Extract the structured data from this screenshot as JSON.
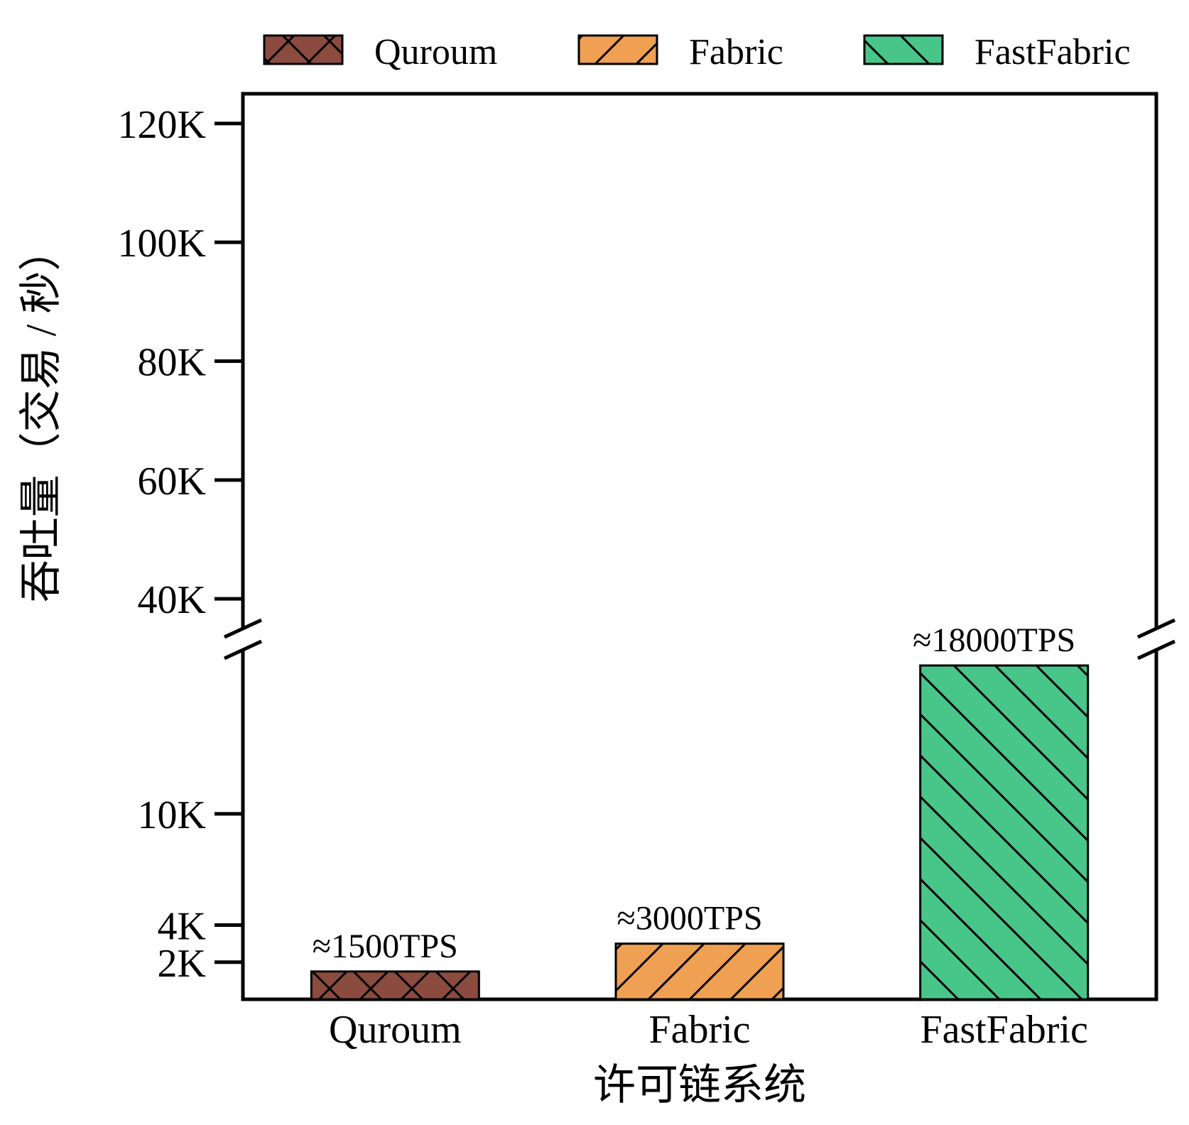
{
  "chart_data": {
    "type": "bar",
    "title": "",
    "xlabel": "许可链系统",
    "ylabel": "吞吐量（交易 / 秒）",
    "categories": [
      "Quroum",
      "Fabric",
      "FastFabric"
    ],
    "values": [
      1500,
      3000,
      18000
    ],
    "data_labels": [
      "≈1500TPS",
      "≈3000TPS",
      "≈18000TPS"
    ],
    "colors": [
      "#8B4B3E",
      "#EFA052",
      "#48C68A"
    ],
    "hatches": [
      "cross-diagonal",
      "forward-diagonal",
      "back-diagonal"
    ],
    "legend": {
      "placement": "top",
      "entries": [
        "Quroum",
        "Fabric",
        "FastFabric"
      ]
    },
    "y_axis": {
      "broken": true,
      "lower_segment_range": [
        0,
        18000
      ],
      "upper_segment_range": [
        35000,
        125000
      ],
      "tick_values": [
        2000,
        4000,
        10000,
        40000,
        60000,
        80000,
        100000,
        120000
      ],
      "tick_labels": [
        "2K",
        "4K",
        "10K",
        "40K",
        "60K",
        "80K",
        "100K",
        "120K"
      ]
    },
    "grid": false
  }
}
